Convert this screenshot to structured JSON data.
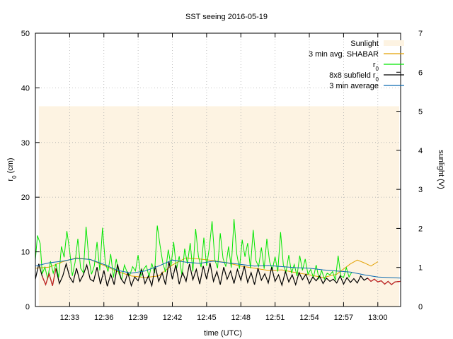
{
  "chart_data": {
    "type": "line",
    "title": "SST seeing 2016-05-19",
    "xlabel": "time (UTC)",
    "ylabel_main": "r",
    "ylabel_sub": "0",
    "ylabel_unit": " (cm)",
    "y2label": "sunlight (V)",
    "xlim": [
      12.5,
      13.0333
    ],
    "ylim": [
      0,
      50
    ],
    "y2lim": [
      0,
      7
    ],
    "grid": true,
    "legend_position": "top-right",
    "x_ticks": [
      {
        "v": 12.55,
        "label": "12:33"
      },
      {
        "v": 12.6,
        "label": "12:36"
      },
      {
        "v": 12.65,
        "label": "12:39"
      },
      {
        "v": 12.7,
        "label": "12:42"
      },
      {
        "v": 12.75,
        "label": "12:45"
      },
      {
        "v": 12.8,
        "label": "12:48"
      },
      {
        "v": 12.85,
        "label": "12:51"
      },
      {
        "v": 12.9,
        "label": "12:54"
      },
      {
        "v": 12.95,
        "label": "12:57"
      },
      {
        "v": 13.0,
        "label": "13:00"
      }
    ],
    "y_ticks": [
      0,
      10,
      20,
      30,
      40,
      50
    ],
    "y2_ticks": [
      0,
      1,
      2,
      3,
      4,
      5,
      6,
      7
    ],
    "legend": [
      {
        "key": "sunlight",
        "main": "Sunlight",
        "sub": ""
      },
      {
        "key": "shabar",
        "main": "3 min avg. SHABAR",
        "sub": ""
      },
      {
        "key": "r0",
        "main": "r",
        "sub": "0"
      },
      {
        "key": "subfield",
        "main": "8x8 subfield r",
        "sub": "0"
      },
      {
        "key": "avg",
        "main": "3 min average",
        "sub": ""
      }
    ],
    "colors": {
      "sunlight": "#fdf3e2",
      "shabar": "#e3a100",
      "r0": "#00e600",
      "subfield": "#000000",
      "subfield_ends": "#e02020",
      "avg": "#0a6ab0",
      "grid": "#b0b0b0"
    },
    "series": {
      "sunlight": {
        "x": [
          12.5,
          12.6,
          12.7,
          12.8,
          12.9,
          13.0,
          13.0333
        ],
        "y": [
          5.1,
          5.11,
          5.12,
          5.12,
          5.12,
          5.13,
          5.13
        ]
      },
      "avg": {
        "x": [
          12.5,
          12.52,
          12.54,
          12.56,
          12.58,
          12.6,
          12.62,
          12.64,
          12.66,
          12.68,
          12.7,
          12.72,
          12.74,
          12.76,
          12.78,
          12.8,
          12.82,
          12.84,
          12.86,
          12.88,
          12.9,
          12.92,
          12.94,
          12.96,
          12.98,
          13.0,
          13.0333
        ],
        "y": [
          7.4,
          8.0,
          8.3,
          8.8,
          8.6,
          7.7,
          6.6,
          6.1,
          6.5,
          7.4,
          8.5,
          8.1,
          7.9,
          8.3,
          8.0,
          7.7,
          7.4,
          7.5,
          7.3,
          7.1,
          7.0,
          6.7,
          6.5,
          6.3,
          5.8,
          5.4,
          5.2
        ]
      },
      "shabar": {
        "x": [
          12.5,
          12.52,
          12.54,
          12.56,
          12.58,
          12.6,
          12.62,
          12.64,
          12.66,
          12.68,
          12.7,
          12.72,
          12.74,
          12.76,
          12.78,
          12.8,
          12.82,
          12.84,
          12.86,
          12.88,
          12.9,
          12.92,
          12.94,
          12.96,
          12.97,
          12.98,
          12.99,
          13.0
        ],
        "y": [
          7.0,
          7.2,
          8.2,
          8.9,
          8.6,
          7.5,
          6.4,
          5.6,
          5.3,
          5.6,
          7.6,
          8.9,
          8.7,
          8.4,
          8.0,
          7.4,
          7.0,
          6.6,
          6.7,
          6.2,
          5.8,
          5.3,
          5.9,
          7.8,
          8.5,
          8.0,
          7.4,
          8.2
        ]
      },
      "r0": {
        "x": [
          12.5,
          12.503,
          12.507,
          12.51,
          12.514,
          12.518,
          12.522,
          12.526,
          12.53,
          12.534,
          12.538,
          12.542,
          12.546,
          12.55,
          12.554,
          12.558,
          12.562,
          12.566,
          12.57,
          12.574,
          12.578,
          12.582,
          12.586,
          12.59,
          12.594,
          12.598,
          12.602,
          12.606,
          12.61,
          12.614,
          12.618,
          12.622,
          12.626,
          12.63,
          12.634,
          12.638,
          12.642,
          12.646,
          12.65,
          12.654,
          12.658,
          12.662,
          12.666,
          12.67,
          12.674,
          12.678,
          12.682,
          12.686,
          12.69,
          12.694,
          12.698,
          12.702,
          12.706,
          12.71,
          12.714,
          12.718,
          12.722,
          12.726,
          12.73,
          12.734,
          12.738,
          12.742,
          12.746,
          12.75,
          12.754,
          12.758,
          12.762,
          12.766,
          12.77,
          12.774,
          12.778,
          12.782,
          12.786,
          12.79,
          12.794,
          12.798,
          12.802,
          12.806,
          12.81,
          12.814,
          12.818,
          12.822,
          12.826,
          12.83,
          12.834,
          12.838,
          12.842,
          12.846,
          12.85,
          12.854,
          12.858,
          12.862,
          12.866,
          12.87,
          12.874,
          12.878,
          12.882,
          12.886,
          12.89,
          12.894,
          12.898,
          12.902,
          12.906,
          12.91,
          12.914,
          12.918,
          12.922,
          12.926,
          12.93,
          12.934,
          12.938,
          12.942,
          12.946,
          12.95,
          12.954,
          12.958,
          12.962
        ],
        "y": [
          8.5,
          13.0,
          11.5,
          6.0,
          7.2,
          5.0,
          8.3,
          6.1,
          7.8,
          5.3,
          11.0,
          9.0,
          13.8,
          10.2,
          5.6,
          8.1,
          12.4,
          7.0,
          6.2,
          14.6,
          8.8,
          5.9,
          7.4,
          11.8,
          6.6,
          14.4,
          8.1,
          6.4,
          9.6,
          5.3,
          8.7,
          6.0,
          5.0,
          7.6,
          6.2,
          5.8,
          7.3,
          6.5,
          9.4,
          5.6,
          6.8,
          7.5,
          5.4,
          7.9,
          6.1,
          14.8,
          11.2,
          8.0,
          6.3,
          10.4,
          7.4,
          11.8,
          6.8,
          9.2,
          5.6,
          10.6,
          7.8,
          11.6,
          6.4,
          14.2,
          9.2,
          7.2,
          12.6,
          7.4,
          10.8,
          15.6,
          8.6,
          7.0,
          13.4,
          8.8,
          7.3,
          11.0,
          7.1,
          16.0,
          9.6,
          6.9,
          12.2,
          9.1,
          11.6,
          7.0,
          14.0,
          8.4,
          7.3,
          10.8,
          6.9,
          12.4,
          8.2,
          6.7,
          9.1,
          6.4,
          13.6,
          7.6,
          6.3,
          9.4,
          6.1,
          7.7,
          5.6,
          9.3,
          6.6,
          8.7,
          5.9,
          6.8,
          5.3,
          7.6,
          5.1,
          6.6,
          5.0,
          6.1,
          5.8,
          6.4,
          4.8,
          9.3,
          5.6,
          5.3,
          7.1,
          5.4,
          6.3
        ]
      },
      "subfield": {
        "x": [
          12.5,
          12.505,
          12.51,
          12.515,
          12.52,
          12.525,
          12.53,
          12.535,
          12.54,
          12.545,
          12.55,
          12.555,
          12.56,
          12.565,
          12.57,
          12.575,
          12.58,
          12.585,
          12.59,
          12.595,
          12.6,
          12.605,
          12.61,
          12.615,
          12.62,
          12.625,
          12.63,
          12.635,
          12.64,
          12.645,
          12.65,
          12.655,
          12.66,
          12.665,
          12.67,
          12.675,
          12.68,
          12.685,
          12.69,
          12.695,
          12.7,
          12.705,
          12.71,
          12.715,
          12.72,
          12.725,
          12.73,
          12.735,
          12.74,
          12.745,
          12.75,
          12.755,
          12.76,
          12.765,
          12.77,
          12.775,
          12.78,
          12.785,
          12.79,
          12.795,
          12.8,
          12.805,
          12.81,
          12.815,
          12.82,
          12.825,
          12.83,
          12.835,
          12.84,
          12.845,
          12.85,
          12.855,
          12.86,
          12.865,
          12.87,
          12.875,
          12.88,
          12.885,
          12.89,
          12.895,
          12.9,
          12.905,
          12.91,
          12.915,
          12.92,
          12.925,
          12.93,
          12.935,
          12.94,
          12.945,
          12.95,
          12.955,
          12.96,
          12.965,
          12.97,
          12.975,
          12.98,
          12.985,
          12.99,
          12.995,
          13.0,
          13.005,
          13.01,
          13.015,
          13.02,
          13.025,
          13.0333
        ],
        "y": [
          5.0,
          7.8,
          5.5,
          4.0,
          6.0,
          3.8,
          7.0,
          4.2,
          5.6,
          7.8,
          5.4,
          4.4,
          7.0,
          4.6,
          5.8,
          7.6,
          5.0,
          4.6,
          7.2,
          4.1,
          6.6,
          3.7,
          5.9,
          4.0,
          7.7,
          5.1,
          4.2,
          6.2,
          3.8,
          5.4,
          4.7,
          6.8,
          4.2,
          5.6,
          3.8,
          7.4,
          4.6,
          6.2,
          4.0,
          8.2,
          5.0,
          7.6,
          4.1,
          6.2,
          4.6,
          7.8,
          4.9,
          6.8,
          4.1,
          7.4,
          5.0,
          8.0,
          4.6,
          6.4,
          4.0,
          7.2,
          5.0,
          6.5,
          4.2,
          6.8,
          4.8,
          7.4,
          4.4,
          6.2,
          4.0,
          7.0,
          4.8,
          6.0,
          4.3,
          7.2,
          4.6,
          5.8,
          3.9,
          6.4,
          4.5,
          5.8,
          4.0,
          6.2,
          4.9,
          5.9,
          4.2,
          5.4,
          4.7,
          5.6,
          4.2,
          5.2,
          4.6,
          5.0,
          4.3,
          5.6,
          4.1,
          5.3,
          4.4,
          5.1,
          4.3,
          5.6,
          4.8,
          5.2,
          4.6,
          5.0,
          4.5,
          4.7,
          4.1,
          4.6,
          4.0,
          4.5,
          4.6
        ]
      }
    }
  }
}
